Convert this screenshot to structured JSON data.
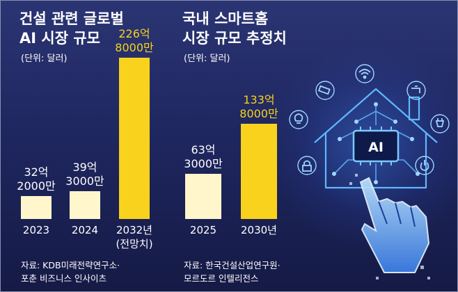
{
  "chart_data": [
    {
      "type": "bar",
      "title": "건설 관련 글로벌 AI 시장 규모",
      "title_lines": [
        "건설 관련 글로벌",
        "AI 시장 규모"
      ],
      "unit": "(단위: 달러)",
      "categories": [
        "2023",
        "2024",
        "2032년(전망치)"
      ],
      "category_lines": [
        [
          "2023"
        ],
        [
          "2024"
        ],
        [
          "2032년",
          "(전망치)"
        ]
      ],
      "values": [
        3220000000,
        3930000000,
        22680000000
      ],
      "value_labels": [
        [
          "32억",
          "2000만"
        ],
        [
          "39억",
          "3000만"
        ],
        [
          "226억",
          "8000만"
        ]
      ],
      "bar_colors": [
        "#fff6cc",
        "#fff6cc",
        "#f8d21d"
      ],
      "label_colors": [
        "#ffffff",
        "#ffffff",
        "#f8d21d"
      ],
      "source": [
        "자료: KDB미래전략연구소·",
        "포춘 비즈니스 인사이츠"
      ]
    },
    {
      "type": "bar",
      "title": "국내 스마트홈 시장 규모 추정치",
      "title_lines": [
        "국내 스마트홈",
        "시장 규모 추정치"
      ],
      "unit": "(단위: 달러)",
      "categories": [
        "2025",
        "2030년"
      ],
      "category_lines": [
        [
          "2025"
        ],
        [
          "2030년"
        ]
      ],
      "values": [
        6330000000,
        13380000000
      ],
      "value_labels": [
        [
          "63억",
          "3000만"
        ],
        [
          "133억",
          "8000만"
        ]
      ],
      "bar_colors": [
        "#fff6cc",
        "#f8d21d"
      ],
      "label_colors": [
        "#ffffff",
        "#f8d21d"
      ],
      "source": [
        "자료: 한국건설산업연구원·",
        "모르도르 인텔리전스"
      ]
    }
  ],
  "illustration": {
    "badge": "AI",
    "icons": [
      "wifi-icon",
      "cctv-camera-icon",
      "faucet-icon",
      "light-bulb-icon",
      "plug-icon",
      "lock-icon",
      "power-icon",
      "hand-cursor-icon"
    ],
    "accent": "#3fa8ff"
  }
}
